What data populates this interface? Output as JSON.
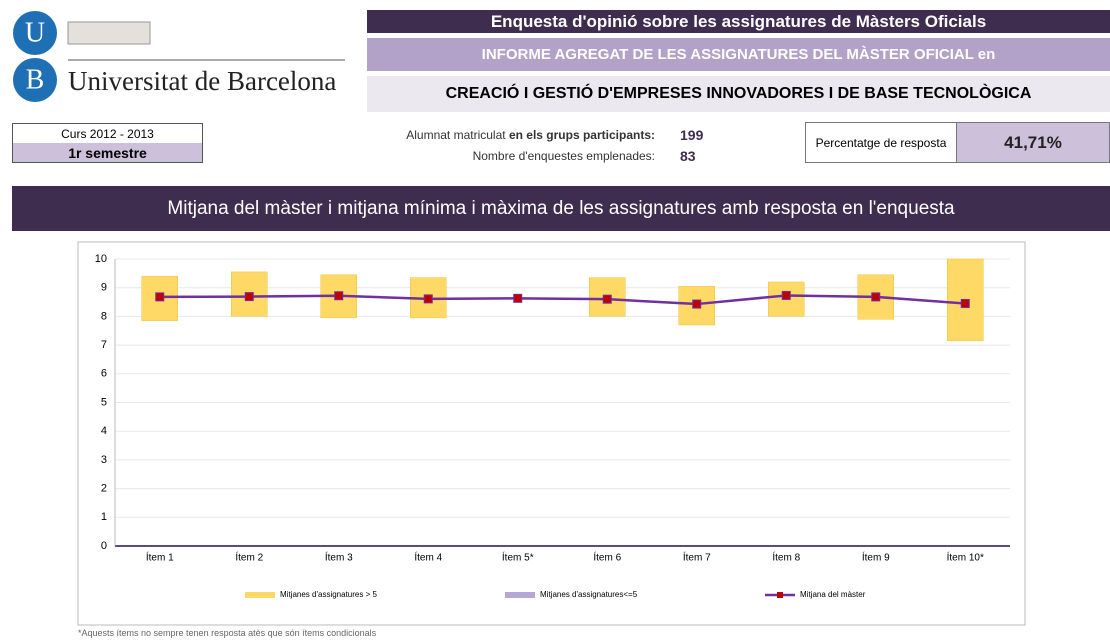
{
  "logo": {
    "letters": [
      "U",
      "B"
    ],
    "name": "Universitat de Barcelona"
  },
  "header": {
    "survey_title": "Enquesta d'opinió sobre les assignatures de Màsters Oficials",
    "report_title": "INFORME AGREGAT DE LES ASSIGNATURES DEL MÀSTER OFICIAL en",
    "master_name": "CREACIÓ I GESTIÓ D'EMPRESES INNOVADORES I DE BASE TECNOLÒGICA"
  },
  "info": {
    "course": "Curs 2012 - 2013",
    "semester": "1r semestre",
    "enrolled_label_1": "Alumnat matriculat",
    "enrolled_label_2": "en els grups participants:",
    "enrolled": "199",
    "surveys_label": "Nombre d'enquestes emplenades:",
    "surveys": "83",
    "response_label": "Percentatge de resposta",
    "response_rate": "41,71%"
  },
  "section_title": "Mitjana del màster i mitjana mínima i màxima de les assignatures amb resposta en l'enquesta",
  "chart_data": {
    "type": "range-line",
    "categories": [
      "Ítem 1",
      "Ítem 2",
      "Ítem 3",
      "Ítem 4",
      "Ítem 5*",
      "Ítem 6",
      "Ítem 7",
      "Ítem 8",
      "Ítem 9",
      "Ítem 10*"
    ],
    "series": [
      {
        "name": "Mitjanes d'assignatures > 5",
        "color": "#ffd966",
        "low": [
          7.85,
          8.0,
          7.95,
          7.95,
          null,
          8.0,
          7.7,
          8.0,
          7.9,
          7.15
        ],
        "high": [
          9.4,
          9.55,
          9.45,
          9.35,
          null,
          9.35,
          9.05,
          9.2,
          9.45,
          10.0
        ]
      },
      {
        "name": "Mitjanes d'assignatures<=5",
        "color": "#b4a7d6",
        "low": [
          null,
          null,
          null,
          null,
          null,
          null,
          null,
          null,
          null,
          null
        ],
        "high": [
          null,
          null,
          null,
          null,
          null,
          null,
          null,
          null,
          null,
          null
        ]
      },
      {
        "name": "Mitjana del màster",
        "color": "#7030a0",
        "marker_color": "#c00000",
        "values": [
          8.68,
          8.69,
          8.72,
          8.61,
          8.63,
          8.6,
          8.43,
          8.73,
          8.68,
          8.45
        ]
      }
    ],
    "ylim": [
      0,
      10
    ],
    "yticks": [
      0,
      1,
      2,
      3,
      4,
      5,
      6,
      7,
      8,
      9,
      10
    ],
    "grid": true
  },
  "footnote": "*Aquests ítems no sempre tenen resposta atès que són ítems condicionals"
}
